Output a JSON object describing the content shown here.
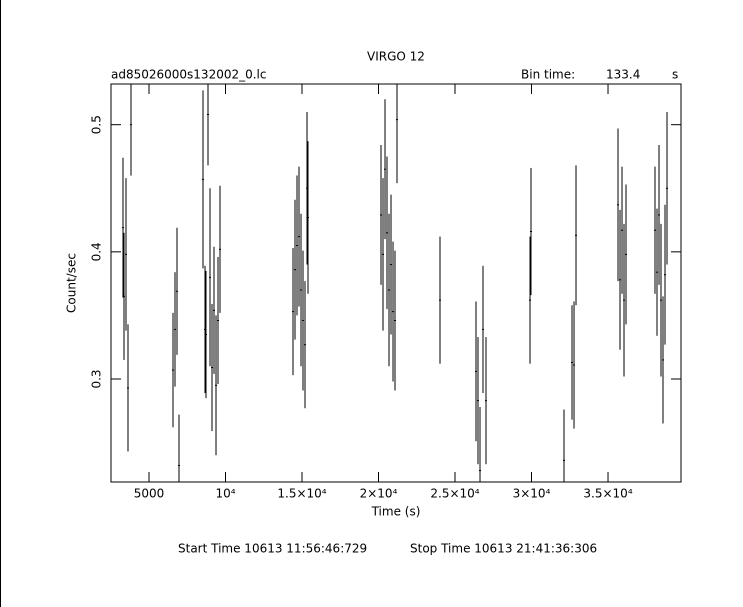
{
  "chart_data": {
    "type": "errorbar",
    "title": "VIRGO 12",
    "subtitle": "ad85026000s132002_0.lc",
    "bin_time_label": "Bin time:",
    "bin_time": 133.4,
    "bin_time_unit": "s",
    "xlabel": "Time (s)",
    "ylabel": "Count/sec",
    "start_time": "Start Time 10613 11:56:46:729",
    "stop_time": "Stop Time 10613 21:41:36:306",
    "xlim": [
      2516,
      39770
    ],
    "ylim": [
      0.219,
      0.532
    ],
    "xticks": [
      5000,
      {
        "value": 10000,
        "label": "10⁴"
      },
      {
        "value": 15000,
        "label": "1.5×10⁴"
      },
      {
        "value": 20000,
        "label": "2×10⁴"
      },
      {
        "value": 25000,
        "label": "2.5×10⁴"
      },
      {
        "value": 30000,
        "label": "3×10⁴"
      },
      {
        "value": 35000,
        "label": "3.5×10⁴"
      }
    ],
    "yticks": [
      0.3,
      0.4,
      0.5
    ],
    "color": "#000000",
    "series": [
      {
        "x": [
          3300,
          3366,
          3496,
          3627,
          3823,
          6568,
          6699,
          6830,
          6960,
          8529,
          8660,
          8725,
          8856,
          8987,
          9117,
          9248,
          9379,
          9510,
          9640,
          14412,
          14542,
          14673,
          14804,
          14935,
          15065,
          15196,
          15327,
          15392,
          20163,
          20294,
          20425,
          20555,
          20686,
          20817,
          20948,
          21078,
          21209,
          24019,
          26372,
          26503,
          26634,
          26830,
          27026,
          29902,
          29967,
          32124,
          32647,
          32778,
          32908,
          35653,
          35784,
          35915,
          36045,
          36176,
          38071,
          38202,
          38333,
          38463,
          38594,
          38725,
          38856
        ],
        "values": [
          0.419,
          0.365,
          0.398,
          0.293,
          0.5,
          0.307,
          0.339,
          0.369,
          0.232,
          0.457,
          0.339,
          0.335,
          0.508,
          0.38,
          0.309,
          0.354,
          0.295,
          0.346,
          0.402,
          0.353,
          0.386,
          0.405,
          0.412,
          0.37,
          0.346,
          0.327,
          0.45,
          0.427,
          0.429,
          0.398,
          0.465,
          0.415,
          0.37,
          0.39,
          0.353,
          0.346,
          0.504,
          0.362,
          0.306,
          0.283,
          0.228,
          0.339,
          0.283,
          0.362,
          0.416,
          0.236,
          0.313,
          0.311,
          0.413,
          0.437,
          0.378,
          0.417,
          0.362,
          0.398,
          0.417,
          0.384,
          0.429,
          0.362,
          0.315,
          0.382,
          0.45
        ],
        "errors": [
          0.055,
          0.05,
          0.06,
          0.05,
          0.04,
          0.045,
          0.045,
          0.05,
          0.04,
          0.07,
          0.05,
          0.05,
          0.04,
          0.07,
          0.05,
          0.05,
          0.055,
          0.05,
          0.05,
          0.05,
          0.055,
          0.055,
          0.055,
          0.06,
          0.055,
          0.05,
          0.06,
          0.06,
          0.055,
          0.06,
          0.055,
          0.06,
          0.06,
          0.055,
          0.055,
          0.055,
          0.05,
          0.05,
          0.055,
          0.05,
          0.05,
          0.05,
          0.05,
          0.05,
          0.05,
          0.04,
          0.045,
          0.05,
          0.055,
          0.06,
          0.055,
          0.05,
          0.06,
          0.055,
          0.05,
          0.05,
          0.055,
          0.06,
          0.05,
          0.055,
          0.06
        ]
      }
    ]
  }
}
